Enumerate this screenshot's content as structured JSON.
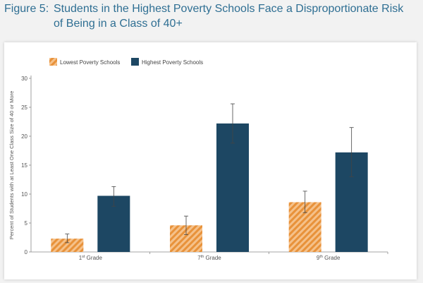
{
  "figure": {
    "label": "Figure 5:",
    "title_line1": "Students in the Highest Poverty Schools Face a Disproportionate Risk",
    "title_line2": "of Being in a Class of 40+"
  },
  "colors": {
    "lowest": "#e8923a",
    "lowest_stripe": "#f5c18a",
    "highest": "#1d4763",
    "title": "#2f6f93",
    "error": "#444444"
  },
  "chart_data": {
    "type": "bar",
    "title": "",
    "xlabel": "",
    "ylabel": "Percent of Students with at Least One Class Size of 40 or More",
    "ylim": [
      0,
      30
    ],
    "yticks": [
      0,
      5,
      10,
      15,
      20,
      25,
      30
    ],
    "legend_position": "top-left",
    "grid": false,
    "categories": [
      {
        "base": "1",
        "sup": "st",
        "rest": " Grade"
      },
      {
        "base": "7",
        "sup": "th",
        "rest": " Grade"
      },
      {
        "base": "9",
        "sup": "th",
        "rest": " Grade"
      }
    ],
    "series": [
      {
        "name": "Lowest Poverty Schools",
        "values": [
          2.3,
          4.6,
          8.6
        ],
        "error_low": [
          1.6,
          3.0,
          6.8
        ],
        "error_high": [
          3.1,
          6.2,
          10.5
        ]
      },
      {
        "name": "Highest Poverty Schools",
        "values": [
          9.7,
          22.2,
          17.2
        ],
        "error_low": [
          7.9,
          18.8,
          13.0
        ],
        "error_high": [
          11.3,
          25.6,
          21.5
        ]
      }
    ]
  }
}
